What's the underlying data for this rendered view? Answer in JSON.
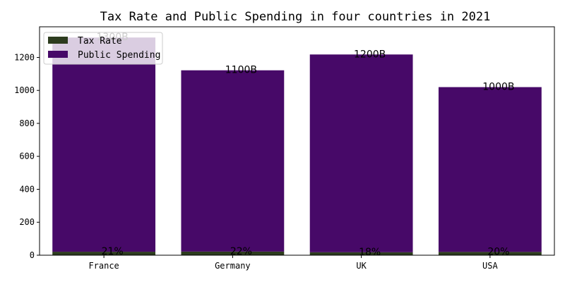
{
  "chart_data": {
    "type": "bar",
    "stacked": true,
    "title": "Tax Rate and Public Spending in four countries in 2021",
    "xlabel": "",
    "ylabel": "",
    "categories": [
      "France",
      "Germany",
      "UK",
      "USA"
    ],
    "series": [
      {
        "name": "Tax Rate",
        "values": [
          21,
          22,
          18,
          20
        ],
        "labels": [
          "21%",
          "22%",
          "18%",
          "20%"
        ],
        "color": "#2d3c1e"
      },
      {
        "name": "Public Spending",
        "values": [
          1300,
          1100,
          1200,
          1000
        ],
        "labels": [
          "1300B",
          "1100B",
          "1200B",
          "1000B"
        ],
        "color": "#470968"
      }
    ],
    "ylim": [
      0,
      1386
    ],
    "yticks": [
      0,
      200,
      400,
      600,
      800,
      1000,
      1200
    ],
    "grid": false,
    "legend_position": "top-left"
  }
}
